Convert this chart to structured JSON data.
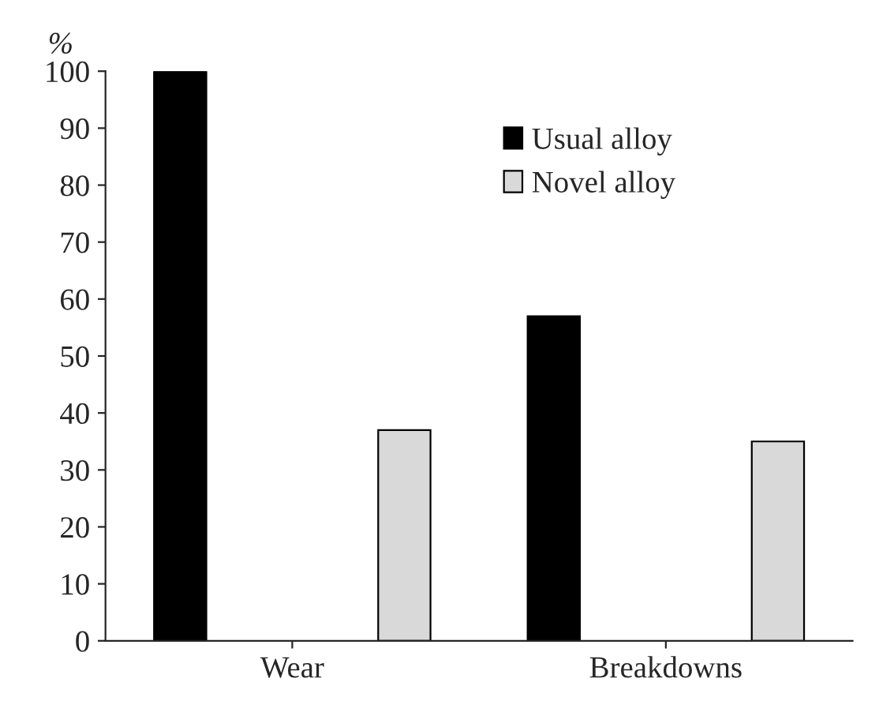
{
  "chart_data": {
    "type": "bar",
    "ylabel": "%",
    "categories": [
      "Wear",
      "Breakdowns"
    ],
    "series": [
      {
        "name": "Usual alloy",
        "color": "#000000",
        "values": [
          100,
          57
        ]
      },
      {
        "name": "Novel alloy",
        "color": "#d9d9d9",
        "values": [
          37,
          35
        ]
      }
    ],
    "ylim": [
      0,
      100
    ],
    "yticks": [
      0,
      10,
      20,
      30,
      40,
      50,
      60,
      70,
      80,
      90,
      100
    ],
    "grid": false,
    "legend": "top right"
  }
}
